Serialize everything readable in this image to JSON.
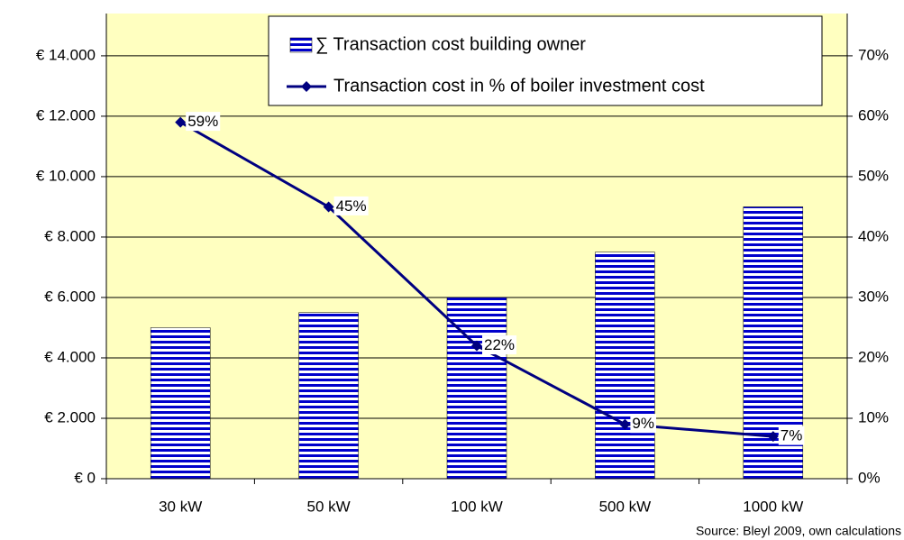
{
  "chart_data": {
    "type": "bar_line",
    "categories": [
      "30 kW",
      "50 kW",
      "100 kW",
      "500 kW",
      "1000 kW"
    ],
    "series": [
      {
        "name": "∑ Transaction cost building owner",
        "type": "bar",
        "color": "#0000cc",
        "values": [
          5000,
          5500,
          6000,
          7500,
          9000
        ]
      },
      {
        "name": "Transaction cost in % of boiler investment cost",
        "type": "line",
        "axis": "y2",
        "color": "#000080",
        "values": [
          59,
          45,
          22,
          9,
          7
        ],
        "value_labels": [
          "59%",
          "45%",
          "22%",
          "9%",
          "7%"
        ]
      }
    ],
    "ylim": [
      0,
      15400
    ],
    "yticks": [
      {
        "value": 0,
        "label": "€ 0"
      },
      {
        "value": 2000,
        "label": "€ 2.000"
      },
      {
        "value": 4000,
        "label": "€ 4.000"
      },
      {
        "value": 6000,
        "label": "€ 6.000"
      },
      {
        "value": 8000,
        "label": "€ 8.000"
      },
      {
        "value": 10000,
        "label": "€ 10.000"
      },
      {
        "value": 12000,
        "label": "€ 12.000"
      },
      {
        "value": 14000,
        "label": "€ 14.000"
      }
    ],
    "y2lim": [
      0,
      77
    ],
    "y2ticks": [
      {
        "value": 0,
        "label": "0%"
      },
      {
        "value": 10,
        "label": "10%"
      },
      {
        "value": 20,
        "label": "20%"
      },
      {
        "value": 30,
        "label": "30%"
      },
      {
        "value": 40,
        "label": "40%"
      },
      {
        "value": 50,
        "label": "50%"
      },
      {
        "value": 60,
        "label": "60%"
      },
      {
        "value": 70,
        "label": "70%"
      }
    ],
    "grid": true,
    "background": "#ffffc0",
    "legend": "top-right",
    "annotation": "Source: Bleyl 2009, own calculations"
  }
}
